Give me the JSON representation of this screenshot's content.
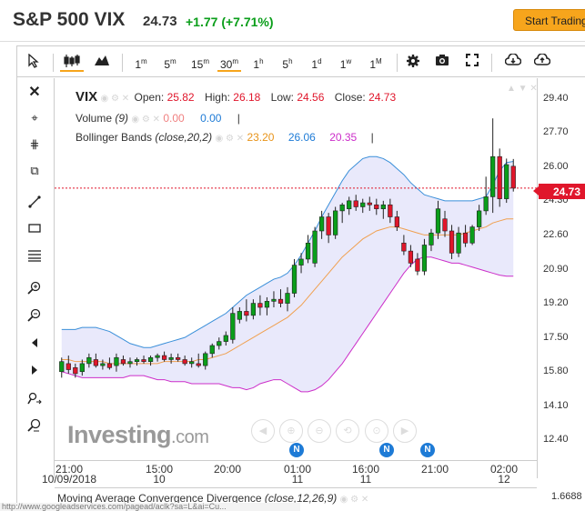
{
  "header": {
    "title": "S&P 500 VIX",
    "price": "24.73",
    "change": "+1.77 (+7.71%)",
    "button": "Start Trading"
  },
  "toolbar": {
    "intervals": [
      {
        "num": "1",
        "unit": "m"
      },
      {
        "num": "5",
        "unit": "m"
      },
      {
        "num": "15",
        "unit": "m"
      },
      {
        "num": "30",
        "unit": "m"
      },
      {
        "num": "1",
        "unit": "h"
      },
      {
        "num": "5",
        "unit": "h"
      },
      {
        "num": "1",
        "unit": "d"
      },
      {
        "num": "1",
        "unit": "w"
      },
      {
        "num": "1",
        "unit": "M"
      }
    ],
    "selected_interval": "30m",
    "icons": [
      "cursor-icon",
      "candles-icon",
      "mountain-icon",
      "gear-icon",
      "camera-icon",
      "fullscreen-icon",
      "cloud-download-icon",
      "cloud-upload-icon"
    ]
  },
  "left_tools": [
    "close-icon",
    "crosshair-icon",
    "magnet-icon",
    "copy-icon",
    "trendline-icon",
    "rectangle-icon",
    "fibonacci-icon",
    "zoom-in-icon",
    "zoom-out-icon",
    "scroll-left-icon",
    "scroll-right-icon",
    "measure-icon",
    "zoom-reset-icon"
  ],
  "legend": {
    "symbol": "VIX",
    "open_label": "Open:",
    "open": "25.82",
    "high_label": "High:",
    "high": "26.18",
    "low_label": "Low:",
    "low": "24.56",
    "close_label": "Close:",
    "close": "24.73",
    "volume_name": "Volume",
    "volume_param": "(9)",
    "volume_v1": "0.00",
    "volume_v2": "0.00",
    "bb_name": "Bollinger Bands",
    "bb_param": "(close,20,2)",
    "bb_v1": "23.20",
    "bb_v2": "26.06",
    "bb_v3": "20.35",
    "sep": "|"
  },
  "current_price": "24.73",
  "watermark": {
    "brand": "Investing",
    "suffix": ".com"
  },
  "news_badge": "N",
  "macd": {
    "name": "Moving Average Convergence Divergence",
    "param": "(close,12,26,9)",
    "value": "1.6688"
  },
  "status_url": "http://www.googleadservices.com/pagead/aclk?sa=L&ai=Cu...",
  "colors": {
    "up": "#0a9e1a",
    "down": "#e0162b",
    "band_upper": "#3a8fd9",
    "band_lower": "#cc2ec9",
    "band_mid": "#f0a050",
    "band_fill": "#e4e4fa",
    "accent": "#f7a51c"
  },
  "chart_data": {
    "type": "candlestick",
    "title": "S&P 500 VIX",
    "y_ticks": [
      "29.40",
      "27.70",
      "26.00",
      "24.30",
      "22.60",
      "20.90",
      "19.20",
      "17.50",
      "15.80",
      "14.10",
      "12.40"
    ],
    "ylim": [
      11.2,
      30.2
    ],
    "x_ticks": [
      {
        "time": "21:00",
        "date": "10/09/2018"
      },
      {
        "time": "15:00",
        "date": "10"
      },
      {
        "time": "20:00",
        "date": ""
      },
      {
        "time": "01:00",
        "date": "11"
      },
      {
        "time": "16:00",
        "date": "11"
      },
      {
        "time": "21:00",
        "date": ""
      },
      {
        "time": "02:00",
        "date": "12"
      }
    ],
    "candles": [
      {
        "o": 15.6,
        "h": 16.3,
        "l": 15.3,
        "c": 16.1
      },
      {
        "o": 16.0,
        "h": 16.4,
        "l": 15.5,
        "c": 15.7
      },
      {
        "o": 15.8,
        "h": 16.0,
        "l": 15.3,
        "c": 15.5
      },
      {
        "o": 15.6,
        "h": 16.2,
        "l": 15.4,
        "c": 16.0
      },
      {
        "o": 16.0,
        "h": 16.5,
        "l": 15.8,
        "c": 16.3
      },
      {
        "o": 16.2,
        "h": 16.5,
        "l": 15.8,
        "c": 15.9
      },
      {
        "o": 15.9,
        "h": 16.2,
        "l": 15.7,
        "c": 16.0
      },
      {
        "o": 16.0,
        "h": 16.3,
        "l": 15.7,
        "c": 15.8
      },
      {
        "o": 15.9,
        "h": 16.5,
        "l": 15.6,
        "c": 16.3
      },
      {
        "o": 16.2,
        "h": 16.4,
        "l": 15.9,
        "c": 16.0
      },
      {
        "o": 16.0,
        "h": 16.3,
        "l": 15.8,
        "c": 16.1
      },
      {
        "o": 16.1,
        "h": 16.3,
        "l": 15.9,
        "c": 16.2
      },
      {
        "o": 16.2,
        "h": 16.4,
        "l": 16.0,
        "c": 16.1
      },
      {
        "o": 16.1,
        "h": 16.4,
        "l": 15.9,
        "c": 16.3
      },
      {
        "o": 16.3,
        "h": 16.5,
        "l": 16.1,
        "c": 16.4
      },
      {
        "o": 16.4,
        "h": 16.6,
        "l": 16.1,
        "c": 16.2
      },
      {
        "o": 16.2,
        "h": 16.5,
        "l": 16.0,
        "c": 16.3
      },
      {
        "o": 16.3,
        "h": 16.5,
        "l": 16.1,
        "c": 16.2
      },
      {
        "o": 16.2,
        "h": 16.4,
        "l": 15.9,
        "c": 16.0
      },
      {
        "o": 16.0,
        "h": 16.3,
        "l": 15.8,
        "c": 16.1
      },
      {
        "o": 16.0,
        "h": 16.5,
        "l": 15.8,
        "c": 15.9
      },
      {
        "o": 15.9,
        "h": 16.6,
        "l": 15.7,
        "c": 16.5
      },
      {
        "o": 16.5,
        "h": 17.0,
        "l": 16.3,
        "c": 16.9
      },
      {
        "o": 16.9,
        "h": 17.3,
        "l": 16.7,
        "c": 17.1
      },
      {
        "o": 17.1,
        "h": 17.6,
        "l": 16.9,
        "c": 17.4
      },
      {
        "o": 17.2,
        "h": 18.8,
        "l": 17.0,
        "c": 18.5
      },
      {
        "o": 18.2,
        "h": 18.8,
        "l": 18.0,
        "c": 18.6
      },
      {
        "o": 18.6,
        "h": 19.2,
        "l": 18.1,
        "c": 18.4
      },
      {
        "o": 18.4,
        "h": 19.2,
        "l": 18.2,
        "c": 19.0
      },
      {
        "o": 19.0,
        "h": 19.4,
        "l": 18.4,
        "c": 18.8
      },
      {
        "o": 18.8,
        "h": 19.3,
        "l": 18.4,
        "c": 19.1
      },
      {
        "o": 19.1,
        "h": 19.6,
        "l": 18.8,
        "c": 19.2
      },
      {
        "o": 19.2,
        "h": 19.7,
        "l": 18.8,
        "c": 19.0
      },
      {
        "o": 19.0,
        "h": 19.8,
        "l": 18.6,
        "c": 19.5
      },
      {
        "o": 19.5,
        "h": 21.2,
        "l": 19.3,
        "c": 20.9
      },
      {
        "o": 20.9,
        "h": 21.5,
        "l": 20.5,
        "c": 21.2
      },
      {
        "o": 21.2,
        "h": 22.4,
        "l": 21.0,
        "c": 22.0
      },
      {
        "o": 21.0,
        "h": 22.8,
        "l": 20.8,
        "c": 22.6
      },
      {
        "o": 22.6,
        "h": 23.6,
        "l": 22.2,
        "c": 23.3
      },
      {
        "o": 23.3,
        "h": 23.5,
        "l": 22.0,
        "c": 22.4
      },
      {
        "o": 22.4,
        "h": 23.8,
        "l": 22.2,
        "c": 23.6
      },
      {
        "o": 23.6,
        "h": 24.0,
        "l": 23.0,
        "c": 23.9
      },
      {
        "o": 23.7,
        "h": 24.3,
        "l": 23.4,
        "c": 24.1
      },
      {
        "o": 24.1,
        "h": 24.4,
        "l": 23.6,
        "c": 23.8
      },
      {
        "o": 23.8,
        "h": 24.2,
        "l": 23.5,
        "c": 24.0
      },
      {
        "o": 24.0,
        "h": 24.3,
        "l": 23.6,
        "c": 23.9
      },
      {
        "o": 23.9,
        "h": 24.2,
        "l": 23.4,
        "c": 23.7
      },
      {
        "o": 23.7,
        "h": 24.1,
        "l": 23.2,
        "c": 23.9
      },
      {
        "o": 23.9,
        "h": 24.2,
        "l": 23.0,
        "c": 23.3
      },
      {
        "o": 23.3,
        "h": 23.6,
        "l": 22.6,
        "c": 22.8
      },
      {
        "o": 22.0,
        "h": 22.4,
        "l": 21.4,
        "c": 21.6
      },
      {
        "o": 21.6,
        "h": 21.9,
        "l": 20.8,
        "c": 21.0
      },
      {
        "o": 21.2,
        "h": 21.5,
        "l": 20.4,
        "c": 20.6
      },
      {
        "o": 20.6,
        "h": 22.2,
        "l": 20.4,
        "c": 21.9
      },
      {
        "o": 21.9,
        "h": 22.7,
        "l": 21.6,
        "c": 22.5
      },
      {
        "o": 22.5,
        "h": 24.1,
        "l": 22.2,
        "c": 23.7
      },
      {
        "o": 23.2,
        "h": 23.6,
        "l": 22.3,
        "c": 22.6
      },
      {
        "o": 22.6,
        "h": 22.9,
        "l": 21.2,
        "c": 21.5
      },
      {
        "o": 21.5,
        "h": 22.8,
        "l": 21.3,
        "c": 22.5
      },
      {
        "o": 22.5,
        "h": 22.9,
        "l": 21.8,
        "c": 22.0
      },
      {
        "o": 22.0,
        "h": 22.9,
        "l": 21.9,
        "c": 22.8
      },
      {
        "o": 22.8,
        "h": 23.9,
        "l": 22.6,
        "c": 23.6
      },
      {
        "o": 23.6,
        "h": 25.3,
        "l": 23.4,
        "c": 24.3
      },
      {
        "o": 24.3,
        "h": 28.2,
        "l": 23.5,
        "c": 26.3
      },
      {
        "o": 26.3,
        "h": 26.7,
        "l": 23.8,
        "c": 24.2
      },
      {
        "o": 24.2,
        "h": 26.2,
        "l": 24.0,
        "c": 25.9
      },
      {
        "o": 25.82,
        "h": 26.18,
        "l": 24.56,
        "c": 24.73
      }
    ],
    "bb_upper": [
      17.7,
      17.7,
      17.7,
      17.8,
      17.8,
      17.8,
      17.7,
      17.6,
      17.4,
      17.2,
      17.0,
      16.9,
      16.8,
      16.8,
      16.9,
      17.0,
      17.1,
      17.2,
      17.3,
      17.5,
      17.7,
      17.9,
      18.1,
      18.3,
      18.5,
      18.8,
      19.1,
      19.4,
      19.6,
      19.8,
      20.0,
      20.2,
      20.3,
      20.5,
      20.9,
      21.4,
      22.0,
      22.6,
      23.3,
      23.9,
      24.5,
      25.1,
      25.6,
      25.9,
      26.2,
      26.3,
      26.3,
      26.2,
      26.0,
      25.7,
      25.4,
      25.0,
      24.7,
      24.4,
      24.3,
      24.2,
      24.1,
      24.1,
      24.1,
      24.1,
      24.1,
      24.2,
      24.3,
      24.9,
      25.6,
      26.0,
      26.06
    ],
    "bb_middle": [
      16.2,
      16.2,
      16.1,
      16.1,
      16.1,
      16.1,
      16.1,
      16.0,
      16.0,
      16.0,
      16.0,
      16.0,
      16.0,
      16.0,
      16.0,
      16.1,
      16.1,
      16.1,
      16.1,
      16.1,
      16.2,
      16.2,
      16.3,
      16.4,
      16.5,
      16.7,
      16.9,
      17.1,
      17.3,
      17.5,
      17.7,
      17.9,
      18.1,
      18.3,
      18.6,
      18.9,
      19.3,
      19.7,
      20.1,
      20.5,
      20.9,
      21.3,
      21.6,
      21.9,
      22.2,
      22.4,
      22.6,
      22.7,
      22.8,
      22.8,
      22.7,
      22.6,
      22.5,
      22.4,
      22.4,
      22.4,
      22.4,
      22.4,
      22.4,
      22.5,
      22.6,
      22.7,
      22.8,
      23.0,
      23.1,
      23.2,
      23.2
    ],
    "bb_lower": [
      15.6,
      15.5,
      15.4,
      15.3,
      15.3,
      15.3,
      15.3,
      15.3,
      15.3,
      15.3,
      15.4,
      15.4,
      15.4,
      15.3,
      15.2,
      15.2,
      15.1,
      15.1,
      15.1,
      15.0,
      15.0,
      15.0,
      15.0,
      15.0,
      14.9,
      14.8,
      14.8,
      14.7,
      14.8,
      15.0,
      15.1,
      15.2,
      15.2,
      15.0,
      14.8,
      14.6,
      14.6,
      14.7,
      14.9,
      15.2,
      15.6,
      16.0,
      16.5,
      17.0,
      17.5,
      18.0,
      18.5,
      19.0,
      19.5,
      20.0,
      20.5,
      20.9,
      21.2,
      21.3,
      21.3,
      21.2,
      21.1,
      21.0,
      21.0,
      20.9,
      20.8,
      20.7,
      20.6,
      20.5,
      20.4,
      20.35,
      20.35
    ]
  }
}
